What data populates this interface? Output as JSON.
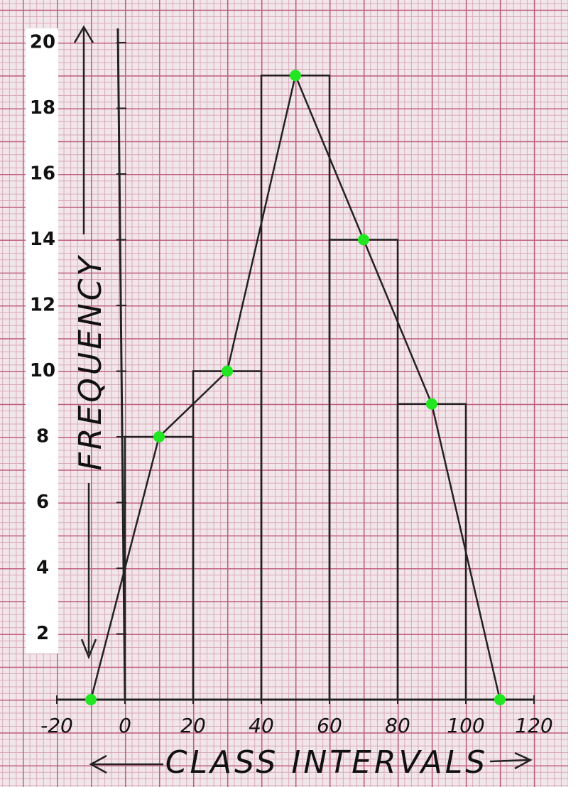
{
  "chart_data": {
    "type": "histogram",
    "x_label": "CLASS INTERVALS",
    "y_label": "FREQUENCY",
    "bins": [
      0,
      20,
      40,
      60,
      80,
      100
    ],
    "values": [
      8,
      10,
      19,
      14,
      9
    ],
    "color": "#222222",
    "polygon": {
      "x": [
        -10,
        10,
        30,
        50,
        70,
        90,
        110
      ],
      "values": [
        0,
        8,
        10,
        19,
        14,
        9,
        0
      ],
      "color": "#22e622"
    },
    "xlim": [
      -20,
      120
    ],
    "xticks": [
      -20,
      0,
      20,
      40,
      60,
      80,
      100,
      120
    ],
    "ylim": [
      0,
      20
    ],
    "yticks": [
      2,
      4,
      6,
      8,
      10,
      12,
      14,
      16,
      18,
      20
    ]
  }
}
